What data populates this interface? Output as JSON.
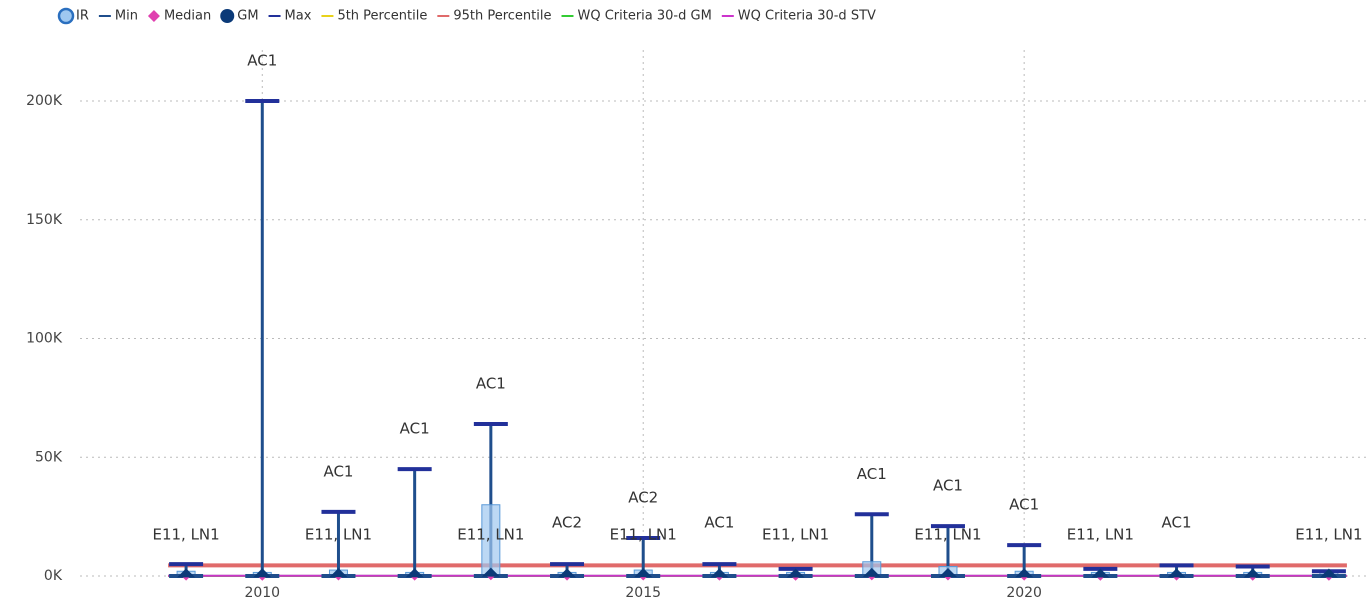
{
  "chart_data": {
    "type": "box",
    "x": [
      2009,
      2010,
      2011,
      2012,
      2013,
      2014,
      2015,
      2016,
      2017,
      2018,
      2019,
      2020,
      2021,
      2022,
      2023,
      2024
    ],
    "series": [
      {
        "name": "IR",
        "color": "#9fc8f0",
        "low": [
          300,
          200,
          300,
          200,
          400,
          300,
          300,
          300,
          200,
          400,
          400,
          300,
          200,
          300,
          200,
          200
        ],
        "values": [
          2000,
          1500,
          2500,
          1500,
          30000,
          1500,
          2500,
          1500,
          1500,
          6000,
          4000,
          2000,
          1500,
          1500,
          1500,
          1500
        ]
      },
      {
        "name": "Min",
        "color": "#1f4e8c",
        "values": [
          1,
          1,
          1,
          1,
          1,
          1,
          1,
          1,
          1,
          1,
          1,
          1,
          1,
          1,
          1,
          1
        ]
      },
      {
        "name": "Median",
        "color": "#e040b0",
        "values": [
          150,
          120,
          200,
          150,
          300,
          150,
          200,
          150,
          120,
          250,
          200,
          150,
          120,
          150,
          120,
          120
        ]
      },
      {
        "name": "GM",
        "color": "#0b3a78",
        "values": [
          250,
          300,
          350,
          300,
          600,
          250,
          350,
          250,
          200,
          450,
          400,
          300,
          200,
          250,
          200,
          200
        ]
      },
      {
        "name": "Max",
        "color": "#22309a",
        "values": [
          5000,
          200000,
          27000,
          45000,
          64000,
          5000,
          16000,
          5000,
          3000,
          26000,
          21000,
          13000,
          3000,
          4500,
          4000,
          2000
        ],
        "value_labels": [
          null,
          "AC1",
          "AC1",
          "AC1",
          "AC1",
          "AC2",
          "AC2",
          "AC1",
          null,
          "AC1",
          "AC1",
          "AC1",
          null,
          "AC1",
          null,
          null
        ]
      },
      {
        "name": "5th Percentile",
        "color": "#e8d21a",
        "value": 10
      },
      {
        "name": "95th Percentile",
        "color": "#e06a6a",
        "value": 4500
      },
      {
        "name": "WQ Criteria 30-d GM",
        "color": "#33cc33",
        "value": 35
      },
      {
        "name": "WQ Criteria 30-d STV",
        "color": "#cc33cc",
        "value": 130
      }
    ],
    "min_labels": [
      "E11, LN1",
      null,
      "E11, LN1",
      null,
      "E11, LN1",
      null,
      "E11, LN1",
      null,
      "E11, LN1",
      null,
      "E11, LN1",
      null,
      "E11, LN1",
      null,
      null,
      "E11, LN1"
    ],
    "xlim": [
      2008.5,
      2024.5
    ],
    "xticks": [
      2010,
      2015,
      2020
    ],
    "ylim": [
      0,
      200000
    ],
    "yticks": [
      {
        "value": 0,
        "label": "0K"
      },
      {
        "value": 50000,
        "label": "50K"
      },
      {
        "value": 100000,
        "label": "100K"
      },
      {
        "value": 150000,
        "label": "150K"
      },
      {
        "value": 200000,
        "label": "200K"
      }
    ],
    "grid": true
  }
}
